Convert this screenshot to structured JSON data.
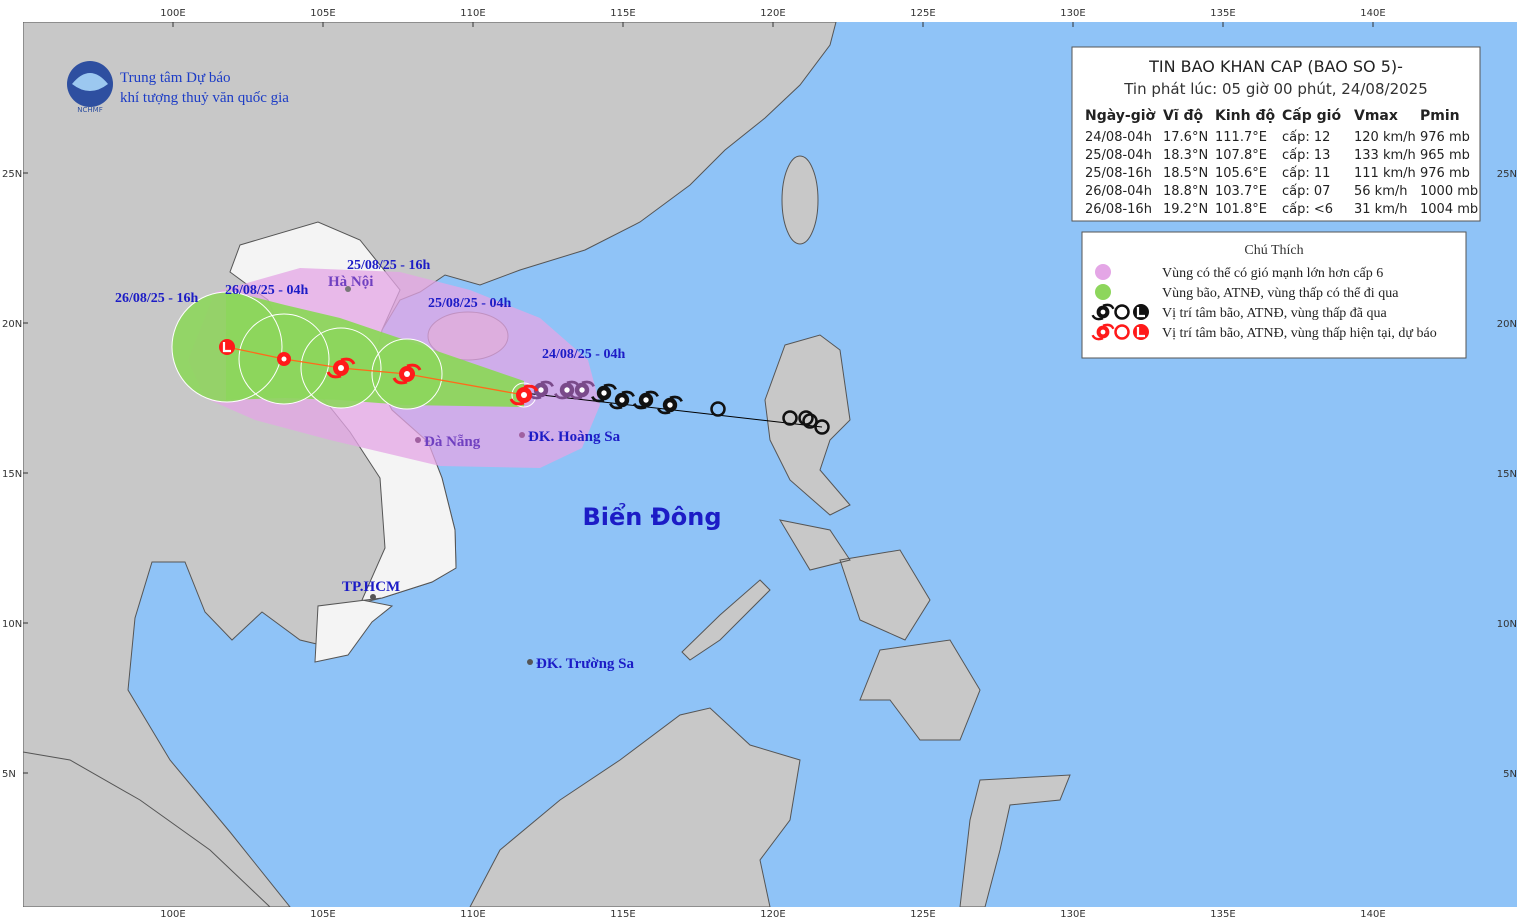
{
  "agency": {
    "line1": "Trung tâm Dự báo",
    "line2": "khí tượng thuỷ văn quốc gia",
    "logo_text": "NCHMF"
  },
  "bulletin": {
    "title": "TIN BAO KHAN CAP (BAO SO 5)-",
    "issued": "Tin phát lúc: 05 giờ 00 phút, 24/08/2025",
    "columns": [
      "Ngày-giờ",
      "Vĩ độ",
      "Kinh độ",
      "Cấp gió",
      "Vmax",
      "Pmin"
    ],
    "rows": [
      [
        "24/08-04h",
        "17.6°N",
        "111.7°E",
        "cấp: 12",
        "120 km/h",
        "976 mb"
      ],
      [
        "25/08-04h",
        "18.3°N",
        "107.8°E",
        "cấp: 13",
        "133 km/h",
        "965 mb"
      ],
      [
        "25/08-16h",
        "18.5°N",
        "105.6°E",
        "cấp: 11",
        "111 km/h",
        "976 mb"
      ],
      [
        "26/08-04h",
        "18.8°N",
        "103.7°E",
        "cấp: 07",
        "56 km/h",
        "1000 mb"
      ],
      [
        "26/08-16h",
        "19.2°N",
        "101.8°E",
        "cấp: <6",
        "31 km/h",
        "1004 mb"
      ]
    ]
  },
  "legend": {
    "title": "Chú Thích",
    "items": [
      "Vùng có thể có gió mạnh lớn hơn cấp 6",
      "Vùng bão, ATNĐ, vùng thấp có thể đi qua",
      "Vị trí tâm bão, ATNĐ, vùng thấp đã qua",
      "Vị trí tâm bão, ATNĐ, vùng thấp hiện tại, dự báo"
    ]
  },
  "track_labels": [
    "26/08/25 - 16h",
    "26/08/25 - 04h",
    "25/08/25 - 16h",
    "25/08/25 - 04h",
    "24/08/25 - 04h"
  ],
  "places": [
    "Hà Nội",
    "Đà Nẵng",
    "ĐK. Hoàng Sa",
    "TP.HCM",
    "ĐK. Trường Sa"
  ],
  "sea_name": "Biển Đông",
  "axes": {
    "lon_ticks": [
      "100E",
      "105E",
      "110E",
      "115E",
      "120E",
      "125E",
      "130E",
      "135E",
      "140E"
    ],
    "lat_ticks": [
      "25N",
      "20N",
      "15N",
      "10N",
      "5N"
    ]
  }
}
